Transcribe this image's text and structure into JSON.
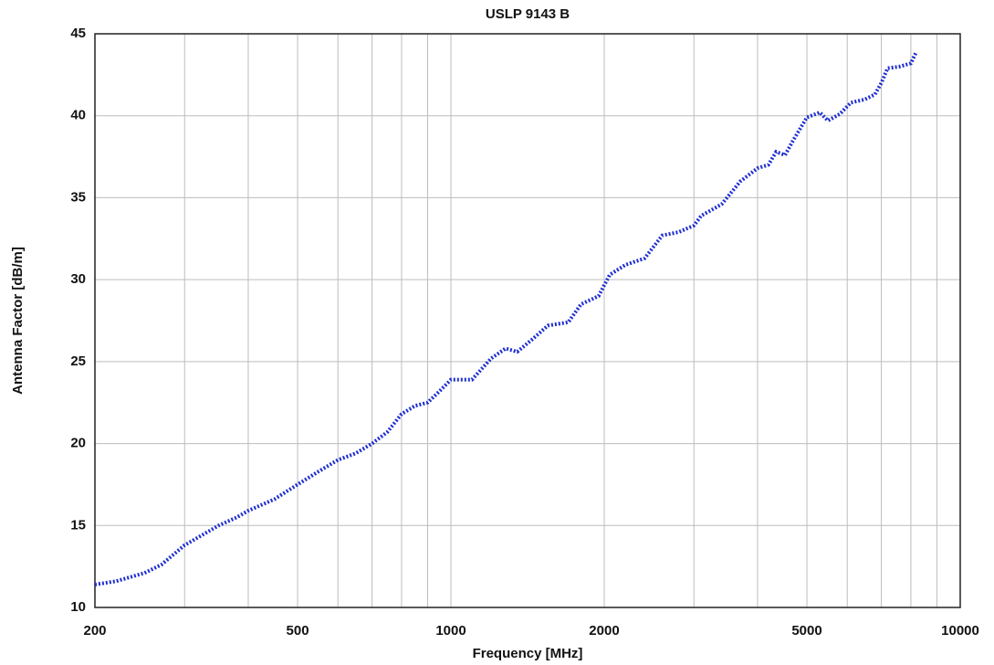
{
  "chart_data": {
    "type": "line",
    "title": "USLP 9143 B",
    "xlabel": "Frequency [MHz]",
    "ylabel": "Antenna Factor [dB/m]",
    "xscale": "log",
    "grid": true,
    "xlim": [
      200,
      10000
    ],
    "ylim": [
      10,
      45
    ],
    "xticks": [
      200,
      500,
      1000,
      2000,
      5000,
      10000
    ],
    "xminorticks": [
      300,
      400,
      600,
      700,
      800,
      900,
      3000,
      4000,
      6000,
      7000,
      8000,
      9000
    ],
    "yticks": [
      10,
      15,
      20,
      25,
      30,
      35,
      40,
      45
    ],
    "x": [
      200,
      220,
      250,
      270,
      300,
      350,
      380,
      400,
      450,
      500,
      550,
      600,
      650,
      700,
      750,
      800,
      850,
      900,
      950,
      1000,
      1100,
      1200,
      1280,
      1350,
      1450,
      1550,
      1700,
      1800,
      1950,
      2050,
      2200,
      2400,
      2600,
      2800,
      3000,
      3100,
      3400,
      3700,
      4000,
      4200,
      4350,
      4530,
      4700,
      5000,
      5300,
      5500,
      5800,
      6100,
      6500,
      6800,
      7000,
      7200,
      7600,
      8000,
      8200
    ],
    "series": [
      {
        "name": "USLP 9143 B",
        "color": "#1f2fd0",
        "values": [
          11.4,
          11.6,
          12.1,
          12.6,
          13.8,
          15.0,
          15.5,
          15.9,
          16.6,
          17.5,
          18.3,
          19.0,
          19.4,
          20.0,
          20.7,
          21.8,
          22.3,
          22.5,
          23.2,
          23.9,
          23.9,
          25.2,
          25.8,
          25.6,
          26.4,
          27.2,
          27.4,
          28.5,
          29.0,
          30.3,
          30.9,
          31.3,
          32.7,
          32.9,
          33.3,
          33.9,
          34.6,
          36.0,
          36.8,
          37.0,
          37.8,
          37.6,
          38.5,
          39.9,
          40.2,
          39.7,
          40.1,
          40.8,
          41.0,
          41.3,
          42.0,
          42.9,
          43.0,
          43.2,
          43.9
        ]
      }
    ]
  }
}
